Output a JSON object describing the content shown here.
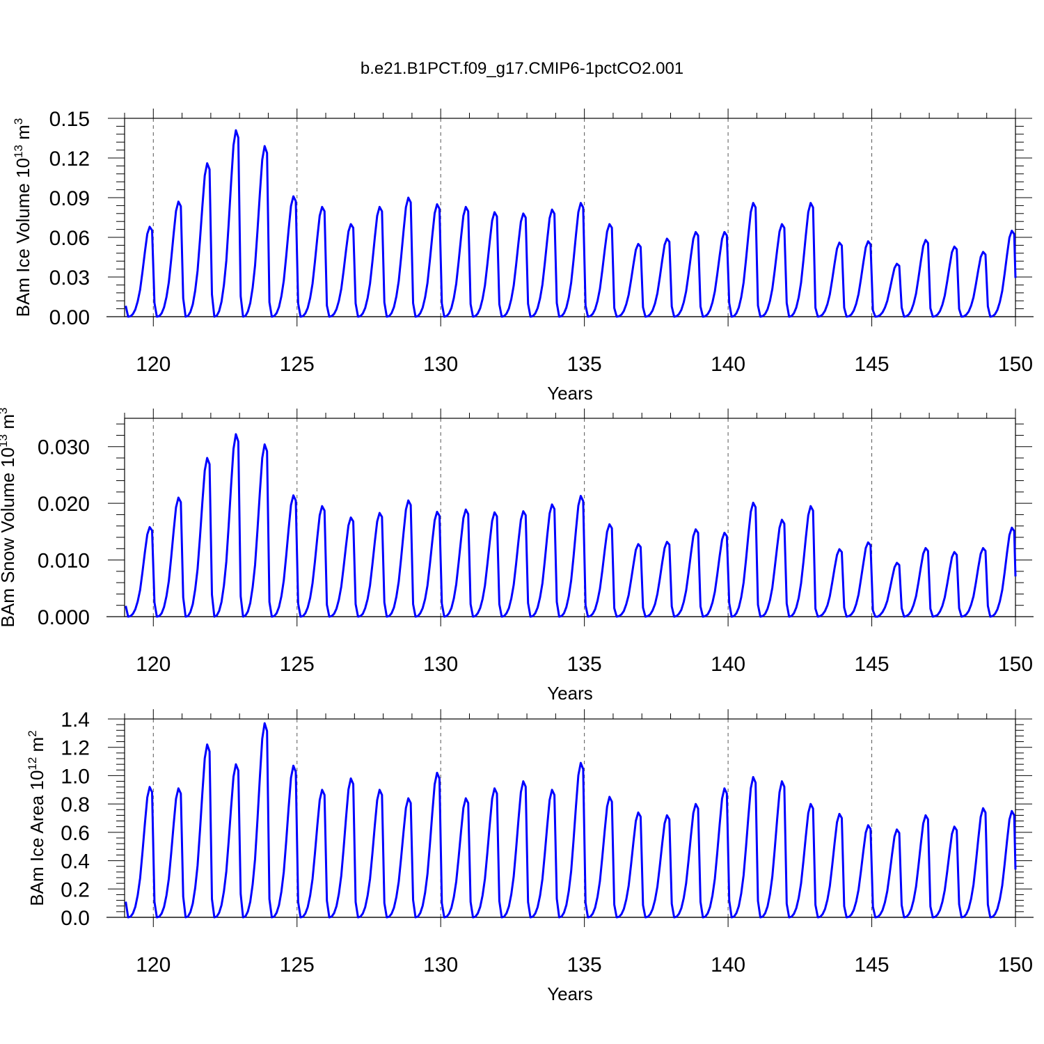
{
  "chart_data": {
    "title": "b.e21.B1PCT.f09_g17.CMIP6-1pctCO2.001",
    "type": "line",
    "line_color": "#0000ff",
    "xlim": [
      119.0,
      150.0
    ],
    "x_ticks": [
      120,
      125,
      130,
      135,
      140,
      145,
      150
    ],
    "x_tick_labels": [
      "120",
      "125",
      "130",
      "135",
      "140",
      "145",
      "150"
    ],
    "grid": "dashed vertical lines at major x ticks",
    "panels": [
      {
        "ylabel_main": "BAm Ice Volume 10",
        "ylabel_sup": "13",
        "ylabel_unit": " m",
        "ylabel_unit_sup": "3",
        "xlabel": "Years",
        "ylim": [
          0.0,
          0.15
        ],
        "y_ticks": [
          0.0,
          0.03,
          0.06,
          0.09,
          0.12,
          0.15
        ],
        "y_tick_labels": [
          "0.00",
          "0.03",
          "0.06",
          "0.09",
          "0.12",
          "0.15"
        ],
        "seasonal_peaks": [
          0.068,
          0.087,
          0.116,
          0.141,
          0.129,
          0.091,
          0.083,
          0.07,
          0.083,
          0.09,
          0.085,
          0.083,
          0.079,
          0.078,
          0.081,
          0.086,
          0.07,
          0.055,
          0.059,
          0.064,
          0.064,
          0.086,
          0.07,
          0.086,
          0.056,
          0.057,
          0.04,
          0.058,
          0.053,
          0.049,
          0.065
        ],
        "x": [],
        "y": []
      },
      {
        "ylabel_main": "BAm Snow Volume 10",
        "ylabel_sup": "13",
        "ylabel_unit": " m",
        "ylabel_unit_sup": "3",
        "xlabel": "Years",
        "ylim": [
          0.0,
          0.035
        ],
        "y_ticks": [
          0.0,
          0.01,
          0.02,
          0.03
        ],
        "y_tick_labels": [
          "0.000",
          "0.010",
          "0.020",
          "0.030"
        ],
        "seasonal_peaks": [
          0.0158,
          0.021,
          0.028,
          0.0322,
          0.0304,
          0.0214,
          0.0195,
          0.0175,
          0.0183,
          0.0205,
          0.0185,
          0.0189,
          0.0184,
          0.0186,
          0.0198,
          0.0213,
          0.0163,
          0.0128,
          0.0132,
          0.0154,
          0.0148,
          0.0201,
          0.0171,
          0.0195,
          0.0119,
          0.0131,
          0.0095,
          0.0121,
          0.0114,
          0.0121,
          0.0157
        ],
        "x": [],
        "y": []
      },
      {
        "ylabel_main": "BAm Ice Area 10",
        "ylabel_sup": "12",
        "ylabel_unit": " m",
        "ylabel_unit_sup": "2",
        "xlabel": "Years",
        "ylim": [
          0.0,
          1.4
        ],
        "y_ticks": [
          0.0,
          0.2,
          0.4,
          0.6,
          0.8,
          1.0,
          1.2,
          1.4
        ],
        "y_tick_labels": [
          "0.0",
          "0.2",
          "0.4",
          "0.6",
          "0.8",
          "1.0",
          "1.2",
          "1.4"
        ],
        "seasonal_peaks": [
          0.92,
          0.91,
          1.22,
          1.08,
          1.37,
          1.07,
          0.9,
          0.98,
          0.9,
          0.84,
          1.02,
          0.84,
          0.91,
          0.96,
          0.9,
          1.09,
          0.85,
          0.74,
          0.72,
          0.8,
          0.91,
          0.99,
          0.96,
          0.8,
          0.73,
          0.65,
          0.62,
          0.72,
          0.64,
          0.77,
          0.75
        ],
        "x": [],
        "y": []
      }
    ]
  }
}
